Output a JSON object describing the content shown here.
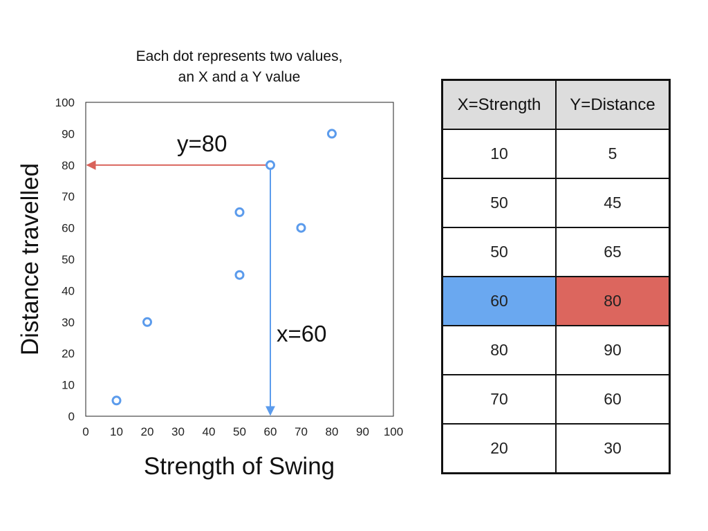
{
  "chart_data": {
    "type": "scatter",
    "title": [
      "Each dot represents two values,",
      "an X and a Y value"
    ],
    "xlabel": "Strength of Swing",
    "ylabel": "Distance travelled",
    "xlim": [
      0,
      100
    ],
    "ylim": [
      0,
      100
    ],
    "xticks": [
      0,
      10,
      20,
      30,
      40,
      50,
      60,
      70,
      80,
      90,
      100
    ],
    "yticks": [
      0,
      10,
      20,
      30,
      40,
      50,
      60,
      70,
      80,
      90,
      100
    ],
    "points": [
      {
        "x": 10,
        "y": 5
      },
      {
        "x": 20,
        "y": 30
      },
      {
        "x": 50,
        "y": 45
      },
      {
        "x": 50,
        "y": 65
      },
      {
        "x": 60,
        "y": 80
      },
      {
        "x": 70,
        "y": 60
      },
      {
        "x": 80,
        "y": 90
      }
    ],
    "grid": false,
    "highlight": {
      "x": 60,
      "y": 80,
      "x_label": "x=60",
      "y_label": "y=80",
      "x_color": "#5b9bec",
      "y_color": "#d9625a"
    },
    "marker_color": "#5b9bec"
  },
  "table": {
    "headers": [
      "X=Strength",
      "Y=Distance"
    ],
    "rows": [
      [
        "10",
        "5"
      ],
      [
        "50",
        "45"
      ],
      [
        "50",
        "65"
      ],
      [
        "60",
        "80"
      ],
      [
        "80",
        "90"
      ],
      [
        "70",
        "60"
      ],
      [
        "20",
        "30"
      ]
    ],
    "highlight_row": 3,
    "highlight_colors": [
      "#6aa8f0",
      "#dc665e"
    ],
    "header_bg": "#dddddd"
  }
}
